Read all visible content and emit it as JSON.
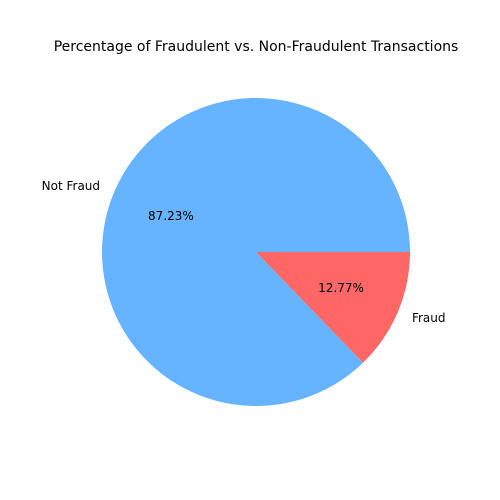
{
  "chart_data": {
    "type": "pie",
    "title": "Percentage of Fraudulent vs. Non-Fraudulent Transactions",
    "slices": [
      {
        "label": "Not Fraud",
        "value": 87.23,
        "pct_label": "87.23%",
        "color": "#66b3ff"
      },
      {
        "label": "Fraud",
        "value": 12.77,
        "pct_label": "12.77%",
        "color": "#ff6666"
      }
    ],
    "start_angle_deg": 0,
    "direction": "counterclockwise",
    "legend": "none"
  }
}
